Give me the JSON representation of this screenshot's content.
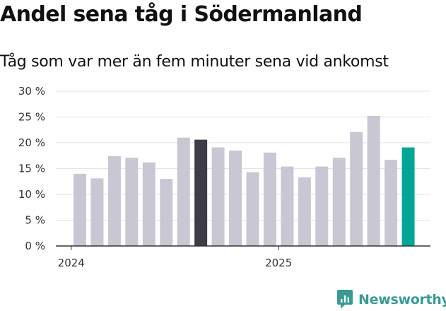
{
  "title": "Andel sena tåg i Södermanland",
  "subtitle": "Tåg som var mer än fem minuter sena vid ankomst",
  "brand": {
    "name": "Newsworthy",
    "icon": "newsworthy-logo-icon"
  },
  "colors": {
    "bar": "#c8c7d3",
    "highlight_dark": "#3d3c48",
    "highlight_latest": "#00a595",
    "grid": "#e3e3e3",
    "axis": "#333333"
  },
  "chart_data": {
    "type": "bar",
    "title": "Andel sena tåg i Södermanland",
    "subtitle": "Tåg som var mer än fem minuter sena vid ankomst",
    "xlabel": "",
    "ylabel": "",
    "ylim": [
      0,
      30
    ],
    "y_ticks": [
      0,
      5,
      10,
      15,
      20,
      25,
      30
    ],
    "y_tick_labels": [
      "0 %",
      "5 %",
      "10 %",
      "15 %",
      "20 %",
      "25 %",
      "30 %"
    ],
    "x_tick_labels": [
      {
        "label": "2024",
        "index": -0.5
      },
      {
        "label": "2025",
        "index": 11.5
      }
    ],
    "values": [
      14,
      13.1,
      17.4,
      17.1,
      16.2,
      13,
      21,
      20.6,
      19.1,
      18.5,
      14.3,
      18.1,
      15.4,
      13.3,
      15.4,
      17.1,
      22.1,
      25.2,
      16.7,
      19.1
    ],
    "highlights": {
      "7": "dark",
      "19": "latest"
    },
    "grid": true
  }
}
